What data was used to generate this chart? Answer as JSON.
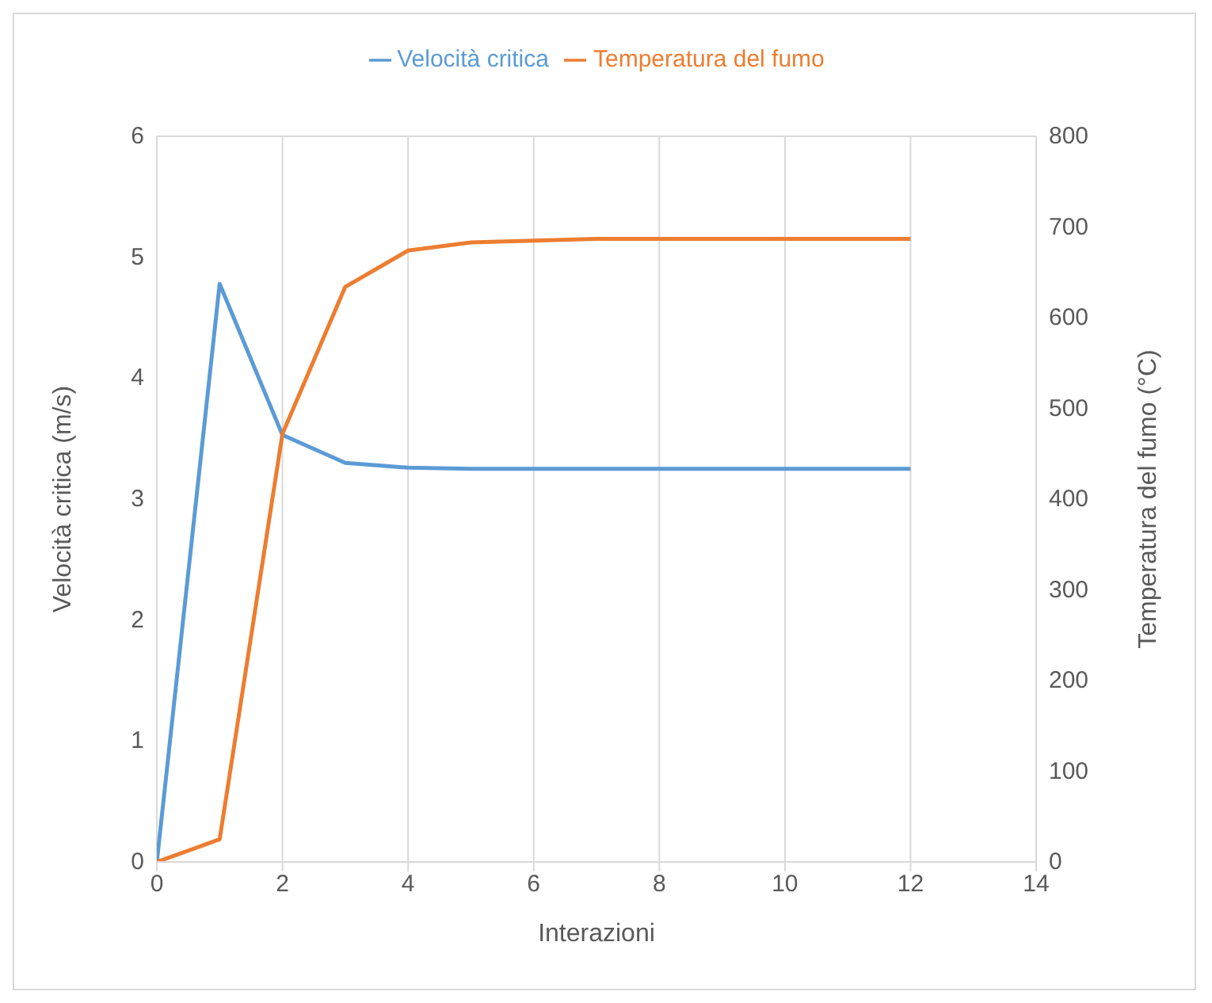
{
  "chart_data": {
    "type": "line",
    "xlabel": "Interazioni",
    "ylabel": "Velocità critica (m/s)",
    "y2label": "Temperatura del fumo (°C)",
    "x": [
      0,
      1,
      2,
      3,
      4,
      5,
      6,
      7,
      8,
      9,
      10,
      11,
      12
    ],
    "series": [
      {
        "name": "Velocità critica",
        "color": "#5b9bd5",
        "values": [
          0,
          4.78,
          3.53,
          3.3,
          3.26,
          3.25,
          3.25,
          3.25,
          3.25,
          3.25,
          3.25,
          3.25,
          3.25
        ]
      },
      {
        "name": "Temperatura del fumo",
        "color": "#ed7d31",
        "axis": "y2",
        "values": [
          0,
          25,
          472,
          634,
          674,
          683,
          685,
          687,
          687,
          687,
          687,
          687,
          687
        ]
      }
    ],
    "xlim": [
      0,
      14
    ],
    "xticks": [
      0,
      2,
      4,
      6,
      8,
      10,
      12,
      14
    ],
    "ylim": [
      0,
      6
    ],
    "yticks": [
      0,
      1,
      2,
      3,
      4,
      5,
      6
    ],
    "y2lim": [
      0,
      800
    ],
    "y2ticks": [
      0,
      100,
      200,
      300,
      400,
      500,
      600,
      700,
      800
    ],
    "grid": true,
    "legend": "top",
    "marker": "none",
    "line_style": "solid"
  }
}
